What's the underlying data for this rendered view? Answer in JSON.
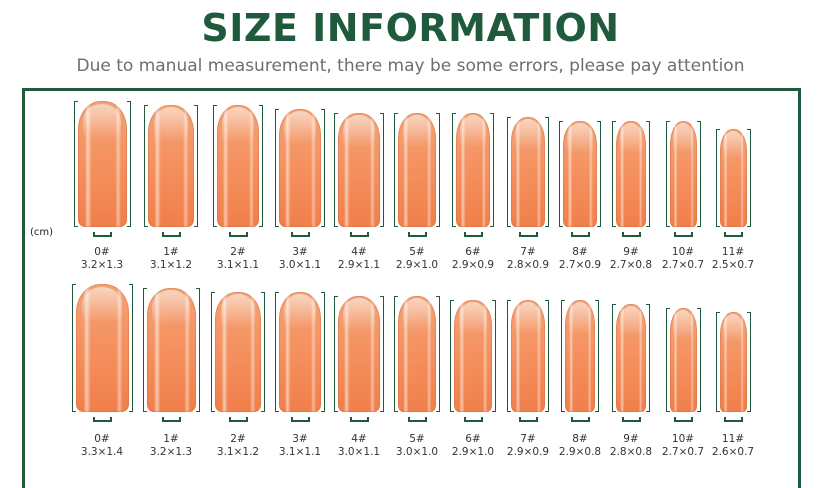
{
  "header": {
    "title": "SIZE INFORMATION",
    "subtitle": "Due to manual measurement, there may be some errors, please pay attention"
  },
  "unit_label": "(cm)",
  "rows": [
    {
      "items": [
        {
          "num": "0#",
          "size": "3.2×1.3"
        },
        {
          "num": "1#",
          "size": "3.1×1.2"
        },
        {
          "num": "2#",
          "size": "3.1×1.1"
        },
        {
          "num": "3#",
          "size": "3.0×1.1"
        },
        {
          "num": "4#",
          "size": "2.9×1.1"
        },
        {
          "num": "5#",
          "size": "2.9×1.0"
        },
        {
          "num": "6#",
          "size": "2.9×0.9"
        },
        {
          "num": "7#",
          "size": "2.8×0.9"
        },
        {
          "num": "8#",
          "size": "2.7×0.9"
        },
        {
          "num": "9#",
          "size": "2.7×0.8"
        },
        {
          "num": "10#",
          "size": "2.7×0.7"
        },
        {
          "num": "11#",
          "size": "2.5×0.7"
        }
      ]
    },
    {
      "items": [
        {
          "num": "0#",
          "size": "3.3×1.4"
        },
        {
          "num": "1#",
          "size": "3.2×1.3"
        },
        {
          "num": "2#",
          "size": "3.1×1.2"
        },
        {
          "num": "3#",
          "size": "3.1×1.1"
        },
        {
          "num": "4#",
          "size": "3.0×1.1"
        },
        {
          "num": "5#",
          "size": "3.0×1.0"
        },
        {
          "num": "6#",
          "size": "2.9×1.0"
        },
        {
          "num": "7#",
          "size": "2.9×0.9"
        },
        {
          "num": "8#",
          "size": "2.9×0.8"
        },
        {
          "num": "9#",
          "size": "2.8×0.8"
        },
        {
          "num": "10#",
          "size": "2.7×0.7"
        },
        {
          "num": "11#",
          "size": "2.6×0.7"
        }
      ]
    }
  ],
  "colors": {
    "accent": "#1f5a3c",
    "nail": "#f59260"
  }
}
